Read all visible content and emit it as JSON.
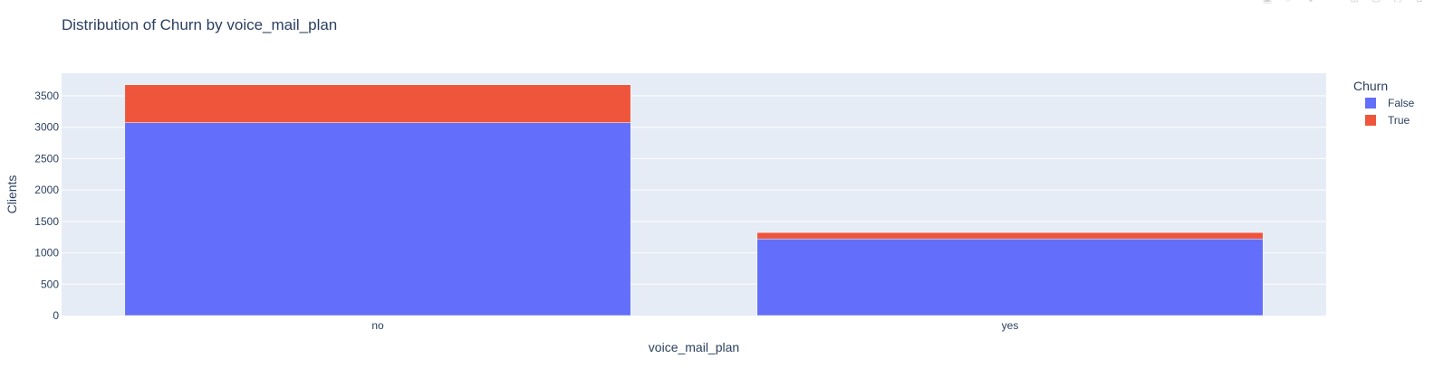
{
  "chart_data": {
    "type": "bar",
    "barmode": "stack",
    "title": "Distribution of Churn by voice_mail_plan",
    "xlabel": "voice_mail_plan",
    "ylabel": "Clients",
    "categories": [
      "no",
      "yes"
    ],
    "series": [
      {
        "name": "False",
        "color": "#636efa",
        "values": [
          3072,
          1221
        ]
      },
      {
        "name": "True",
        "color": "#ef553b",
        "values": [
          605,
          102
        ]
      }
    ],
    "ylim": [
      0,
      3860
    ],
    "yticks": [
      0,
      500,
      1000,
      1500,
      2000,
      2500,
      3000,
      3500
    ],
    "grid": true,
    "legend": {
      "title": "Churn",
      "placement": "top-right"
    },
    "plot_bgcolor": "#e5ecf6",
    "paper_bgcolor": "#ffffff"
  },
  "modebar": {
    "icons": [
      "camera-icon",
      "zoom-icon",
      "pan-icon",
      "lasso-icon",
      "zoom-in-icon",
      "zoom-out-icon",
      "autoscale-icon",
      "reset-icon",
      "plotly-logo-icon"
    ]
  }
}
